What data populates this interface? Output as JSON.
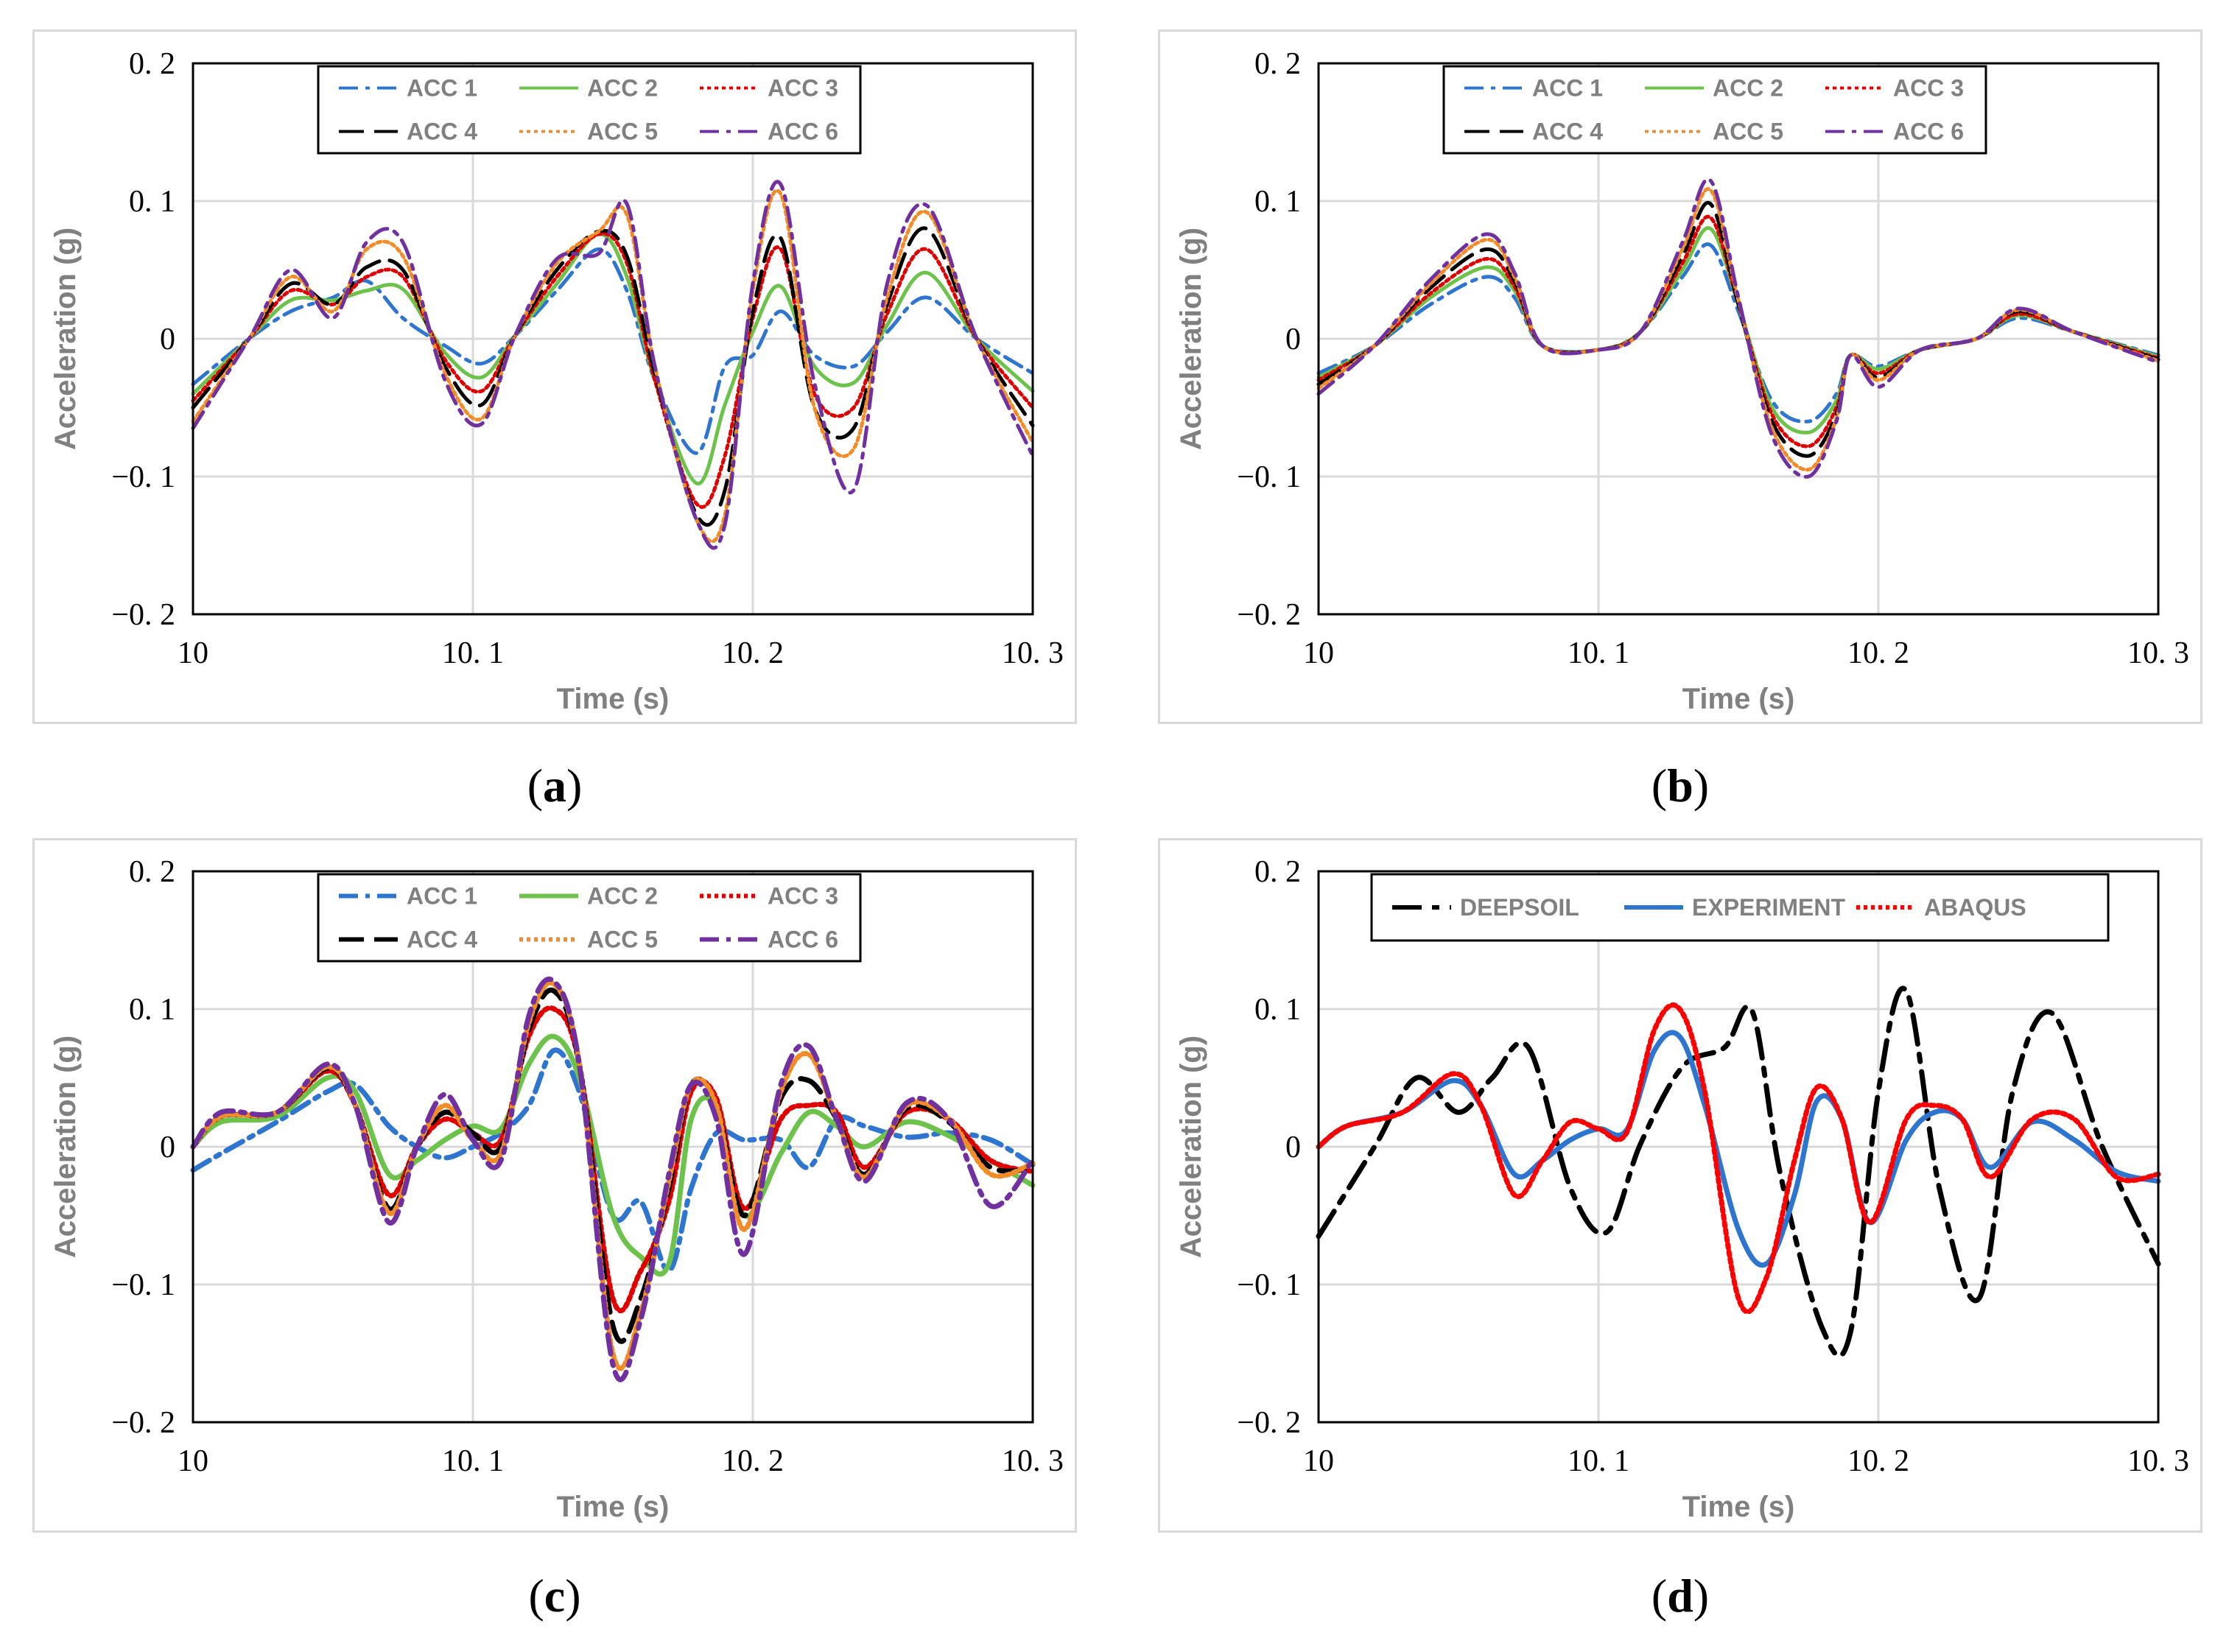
{
  "colors": {
    "acc1": "#2e75d0",
    "acc2": "#6cc24a",
    "acc3": "#e00000",
    "acc4": "#000000",
    "acc5": "#f28c28",
    "acc6": "#7030a0",
    "experiment": "#2e75d0",
    "abaqus": "#ff0000",
    "deepsoil": "#000000"
  },
  "chart_data": [
    {
      "panel": "a",
      "caption_letter": "a",
      "type": "line",
      "xlabel": "Time (s)",
      "ylabel": "Acceleration (g)",
      "xlim": [
        10,
        10.3
      ],
      "ylim": [
        -0.2,
        0.2
      ],
      "xticks": [
        "10",
        "10. 1",
        "10. 2",
        "10. 3"
      ],
      "yticks": [
        "0. 2",
        "0. 1",
        "0",
        "−0. 1",
        "−0. 2"
      ],
      "grid": true,
      "legend_position": "top-center",
      "x": [
        10.0,
        10.02,
        10.035,
        10.05,
        10.062,
        10.075,
        10.09,
        10.103,
        10.115,
        10.13,
        10.145,
        10.155,
        10.165,
        10.18,
        10.19,
        10.2,
        10.21,
        10.222,
        10.236,
        10.248,
        10.262,
        10.28,
        10.3
      ],
      "series": [
        {
          "name": "ACC 1",
          "color_key": "acc1",
          "dash": "dashdot",
          "values": [
            -0.033,
            0.0,
            0.02,
            0.03,
            0.042,
            0.015,
            -0.005,
            -0.018,
            0.002,
            0.035,
            0.065,
            0.035,
            -0.03,
            -0.083,
            -0.02,
            -0.012,
            0.02,
            -0.012,
            -0.02,
            0.005,
            0.03,
            0.0,
            -0.025
          ]
        },
        {
          "name": "ACC 2",
          "color_key": "acc2",
          "dash": "solid",
          "values": [
            -0.04,
            0.0,
            0.028,
            0.028,
            0.035,
            0.036,
            -0.01,
            -0.028,
            0.002,
            0.04,
            0.076,
            0.045,
            -0.03,
            -0.105,
            -0.048,
            0.005,
            0.038,
            -0.02,
            -0.032,
            0.01,
            0.048,
            0.0,
            -0.038
          ]
        },
        {
          "name": "ACC 3",
          "color_key": "acc3",
          "dash": "dotted",
          "values": [
            -0.045,
            0.0,
            0.035,
            0.025,
            0.045,
            0.045,
            -0.015,
            -0.038,
            0.002,
            0.045,
            0.076,
            0.055,
            -0.03,
            -0.12,
            -0.085,
            0.015,
            0.065,
            -0.04,
            -0.05,
            0.018,
            0.065,
            0.0,
            -0.05
          ]
        },
        {
          "name": "ACC 4",
          "color_key": "acc4",
          "dash": "dashed",
          "values": [
            -0.05,
            0.0,
            0.04,
            0.025,
            0.052,
            0.05,
            -0.02,
            -0.048,
            0.002,
            0.05,
            0.078,
            0.06,
            -0.025,
            -0.128,
            -0.11,
            0.02,
            0.073,
            -0.05,
            -0.065,
            0.025,
            0.08,
            0.0,
            -0.063
          ]
        },
        {
          "name": "ACC 5",
          "color_key": "acc5",
          "dash": "dotted",
          "values": [
            -0.06,
            0.0,
            0.045,
            0.02,
            0.065,
            0.06,
            -0.025,
            -0.058,
            0.002,
            0.055,
            0.078,
            0.09,
            -0.02,
            -0.132,
            -0.128,
            0.035,
            0.105,
            -0.05,
            -0.08,
            0.03,
            0.092,
            0.0,
            -0.075
          ]
        },
        {
          "name": "ACC 6",
          "color_key": "acc6",
          "dash": "dashdot",
          "values": [
            -0.065,
            0.0,
            0.05,
            0.015,
            0.07,
            0.07,
            -0.03,
            -0.062,
            0.002,
            0.058,
            0.062,
            0.098,
            -0.02,
            -0.132,
            -0.135,
            0.04,
            0.112,
            -0.032,
            -0.11,
            0.04,
            0.097,
            0.0,
            -0.085
          ]
        }
      ]
    },
    {
      "panel": "b",
      "caption_letter": "b",
      "type": "line",
      "xlabel": "Time (s)",
      "ylabel": "Acceleration (g)",
      "xlim": [
        10,
        10.3
      ],
      "ylim": [
        -0.2,
        0.2
      ],
      "xticks": [
        "10",
        "10. 1",
        "10. 2",
        "10. 3"
      ],
      "yticks": [
        "0. 2",
        "0. 1",
        "0",
        "−0. 1",
        "−0. 2"
      ],
      "grid": true,
      "legend_position": "top-center",
      "x": [
        10.0,
        10.02,
        10.04,
        10.06,
        10.07,
        10.08,
        10.1,
        10.115,
        10.13,
        10.14,
        10.15,
        10.162,
        10.175,
        10.185,
        10.19,
        10.2,
        10.215,
        10.235,
        10.25,
        10.27,
        10.3
      ],
      "series": [
        {
          "name": "ACC 1",
          "color_key": "acc1",
          "dash": "dashdot",
          "values": [
            -0.025,
            -0.005,
            0.025,
            0.045,
            0.03,
            -0.005,
            -0.008,
            0.005,
            0.045,
            0.068,
            0.02,
            -0.045,
            -0.06,
            -0.04,
            -0.012,
            -0.02,
            -0.008,
            0.0,
            0.015,
            0.005,
            -0.012
          ]
        },
        {
          "name": "ACC 2",
          "color_key": "acc2",
          "dash": "solid",
          "values": [
            -0.028,
            -0.005,
            0.03,
            0.052,
            0.035,
            -0.005,
            -0.008,
            0.005,
            0.05,
            0.08,
            0.025,
            -0.05,
            -0.068,
            -0.045,
            -0.012,
            -0.022,
            -0.008,
            0.0,
            0.017,
            0.005,
            -0.013
          ]
        },
        {
          "name": "ACC 3",
          "color_key": "acc3",
          "dash": "dotted",
          "values": [
            -0.03,
            -0.005,
            0.033,
            0.058,
            0.038,
            -0.005,
            -0.008,
            0.005,
            0.055,
            0.088,
            0.025,
            -0.055,
            -0.078,
            -0.05,
            -0.012,
            -0.025,
            -0.008,
            0.0,
            0.018,
            0.005,
            -0.014
          ]
        },
        {
          "name": "ACC 4",
          "color_key": "acc4",
          "dash": "dashed",
          "values": [
            -0.033,
            -0.005,
            0.037,
            0.065,
            0.042,
            -0.005,
            -0.008,
            0.005,
            0.06,
            0.098,
            0.025,
            -0.06,
            -0.085,
            -0.055,
            -0.012,
            -0.028,
            -0.008,
            0.0,
            0.02,
            0.005,
            -0.015
          ]
        },
        {
          "name": "ACC 5",
          "color_key": "acc5",
          "dash": "dotted",
          "values": [
            -0.036,
            -0.005,
            0.04,
            0.072,
            0.045,
            -0.005,
            -0.008,
            0.005,
            0.065,
            0.108,
            0.028,
            -0.065,
            -0.095,
            -0.058,
            -0.012,
            -0.03,
            -0.008,
            0.0,
            0.021,
            0.005,
            -0.016
          ]
        },
        {
          "name": "ACC 6",
          "color_key": "acc6",
          "dash": "dashdot",
          "values": [
            -0.04,
            -0.005,
            0.043,
            0.076,
            0.048,
            -0.005,
            -0.008,
            0.005,
            0.07,
            0.115,
            0.03,
            -0.07,
            -0.1,
            -0.06,
            -0.012,
            -0.035,
            -0.008,
            0.0,
            0.022,
            0.005,
            -0.017
          ]
        }
      ]
    },
    {
      "panel": "c",
      "caption_letter": "c",
      "type": "line",
      "xlabel": "Time (s)",
      "ylabel": "Acceleration (g)",
      "xlim": [
        10,
        10.3
      ],
      "ylim": [
        -0.2,
        0.2
      ],
      "xticks": [
        "10",
        "10. 1",
        "10. 2",
        "10. 3"
      ],
      "yticks": [
        "0. 2",
        "0. 1",
        "0",
        "−0. 1",
        "−0. 2"
      ],
      "grid": true,
      "legend_position": "top-center",
      "x": [
        10.0,
        10.01,
        10.03,
        10.048,
        10.058,
        10.07,
        10.08,
        10.09,
        10.1,
        10.11,
        10.12,
        10.129,
        10.138,
        10.15,
        10.16,
        10.17,
        10.178,
        10.187,
        10.197,
        10.21,
        10.22,
        10.23,
        10.24,
        10.255,
        10.27,
        10.285,
        10.3
      ],
      "series": [
        {
          "name": "ACC 1",
          "color_key": "acc1",
          "dash": "dashdot",
          "values": [
            -0.017,
            -0.005,
            0.018,
            0.04,
            0.045,
            0.015,
            0.0,
            -0.008,
            0.0,
            0.01,
            0.03,
            0.07,
            0.04,
            -0.05,
            -0.04,
            -0.09,
            -0.03,
            0.01,
            0.005,
            0.005,
            -0.015,
            0.02,
            0.015,
            0.007,
            0.01,
            0.005,
            -0.013
          ]
        },
        {
          "name": "ACC 2",
          "color_key": "acc2",
          "dash": "solid",
          "values": [
            0.0,
            0.018,
            0.022,
            0.05,
            0.04,
            -0.02,
            -0.01,
            0.005,
            0.015,
            0.013,
            0.06,
            0.08,
            0.05,
            -0.05,
            -0.08,
            -0.085,
            0.02,
            0.028,
            -0.05,
            -0.005,
            0.025,
            0.015,
            0.0,
            0.018,
            0.008,
            -0.01,
            -0.028
          ]
        },
        {
          "name": "ACC 3",
          "color_key": "acc3",
          "dash": "dotted",
          "values": [
            0.0,
            0.022,
            0.025,
            0.055,
            0.03,
            -0.035,
            0.0,
            0.02,
            0.01,
            0.005,
            0.08,
            0.1,
            0.06,
            -0.11,
            -0.09,
            -0.04,
            0.04,
            0.035,
            -0.045,
            0.02,
            0.03,
            0.025,
            -0.015,
            0.025,
            0.02,
            -0.01,
            -0.018
          ]
        },
        {
          "name": "ACC 4",
          "color_key": "acc4",
          "dash": "dashed",
          "values": [
            0.0,
            0.022,
            0.025,
            0.057,
            0.03,
            -0.045,
            0.0,
            0.025,
            0.01,
            0.0,
            0.085,
            0.113,
            0.06,
            -0.13,
            -0.11,
            -0.03,
            0.045,
            0.03,
            -0.05,
            0.035,
            0.048,
            0.02,
            -0.02,
            0.028,
            0.018,
            -0.015,
            -0.016
          ]
        },
        {
          "name": "ACC 5",
          "color_key": "acc5",
          "dash": "dotted",
          "values": [
            0.0,
            0.022,
            0.025,
            0.058,
            0.03,
            -0.048,
            0.0,
            0.03,
            0.005,
            -0.005,
            0.09,
            0.118,
            0.06,
            -0.15,
            -0.12,
            -0.025,
            0.045,
            0.03,
            -0.06,
            0.04,
            0.067,
            0.02,
            -0.022,
            0.03,
            0.02,
            -0.02,
            -0.012
          ]
        },
        {
          "name": "ACC 6",
          "color_key": "acc6",
          "dash": "dashdot",
          "values": [
            0.0,
            0.025,
            0.025,
            0.06,
            0.03,
            -0.055,
            0.0,
            0.038,
            0.005,
            -0.01,
            0.095,
            0.12,
            0.06,
            -0.158,
            -0.125,
            -0.02,
            0.045,
            0.02,
            -0.078,
            0.045,
            0.073,
            0.02,
            -0.025,
            0.032,
            0.02,
            -0.043,
            -0.01
          ]
        }
      ]
    },
    {
      "panel": "d",
      "caption_letter": "d",
      "type": "line",
      "xlabel": "Time (s)",
      "ylabel": "Acceleration (g)",
      "xlim": [
        10,
        10.3
      ],
      "ylim": [
        -0.2,
        0.2
      ],
      "xticks": [
        "10",
        "10. 1",
        "10. 2",
        "10. 3"
      ],
      "yticks": [
        "0. 2",
        "0. 1",
        "0",
        "−0. 1",
        "−0. 2"
      ],
      "grid": true,
      "legend_position": "top-center",
      "series": [
        {
          "name": "DEEPSOIL",
          "color_key": "deepsoil",
          "dash": "dashdot-heavy",
          "x": [
            10.0,
            10.02,
            10.035,
            10.05,
            10.062,
            10.075,
            10.09,
            10.103,
            10.115,
            10.13,
            10.145,
            10.155,
            10.165,
            10.18,
            10.19,
            10.2,
            10.21,
            10.222,
            10.236,
            10.248,
            10.262,
            10.28,
            10.3
          ],
          "values": [
            -0.065,
            0.0,
            0.05,
            0.025,
            0.05,
            0.072,
            -0.03,
            -0.062,
            0.002,
            0.058,
            0.072,
            0.098,
            -0.02,
            -0.132,
            -0.135,
            0.04,
            0.113,
            -0.032,
            -0.11,
            0.04,
            0.097,
            0.0,
            -0.085
          ]
        },
        {
          "name": "EXPERIMENT",
          "color_key": "experiment",
          "dash": "solid",
          "x": [
            10.0,
            10.01,
            10.03,
            10.048,
            10.058,
            10.07,
            10.08,
            10.09,
            10.1,
            10.11,
            10.12,
            10.129,
            10.138,
            10.15,
            10.16,
            10.17,
            10.178,
            10.187,
            10.197,
            10.21,
            10.22,
            10.23,
            10.24,
            10.255,
            10.27,
            10.285,
            10.3
          ],
          "values": [
            0.0,
            0.015,
            0.025,
            0.048,
            0.03,
            -0.02,
            -0.01,
            0.005,
            0.013,
            0.012,
            0.07,
            0.08,
            0.03,
            -0.06,
            -0.085,
            -0.035,
            0.033,
            0.02,
            -0.055,
            0.005,
            0.025,
            0.02,
            -0.015,
            0.018,
            0.005,
            -0.018,
            -0.025
          ]
        },
        {
          "name": "ABAQUS",
          "color_key": "abaqus",
          "dash": "dotted",
          "x": [
            10.0,
            10.01,
            10.03,
            10.048,
            10.058,
            10.07,
            10.08,
            10.09,
            10.1,
            10.11,
            10.12,
            10.129,
            10.138,
            10.15,
            10.16,
            10.17,
            10.178,
            10.187,
            10.197,
            10.21,
            10.22,
            10.23,
            10.24,
            10.255,
            10.27,
            10.285,
            10.3
          ],
          "values": [
            0.0,
            0.015,
            0.025,
            0.053,
            0.03,
            -0.035,
            -0.01,
            0.018,
            0.013,
            0.01,
            0.085,
            0.1,
            0.04,
            -0.11,
            -0.095,
            -0.01,
            0.043,
            0.02,
            -0.055,
            0.02,
            0.03,
            0.02,
            -0.022,
            0.02,
            0.02,
            -0.022,
            -0.02
          ]
        }
      ]
    }
  ]
}
